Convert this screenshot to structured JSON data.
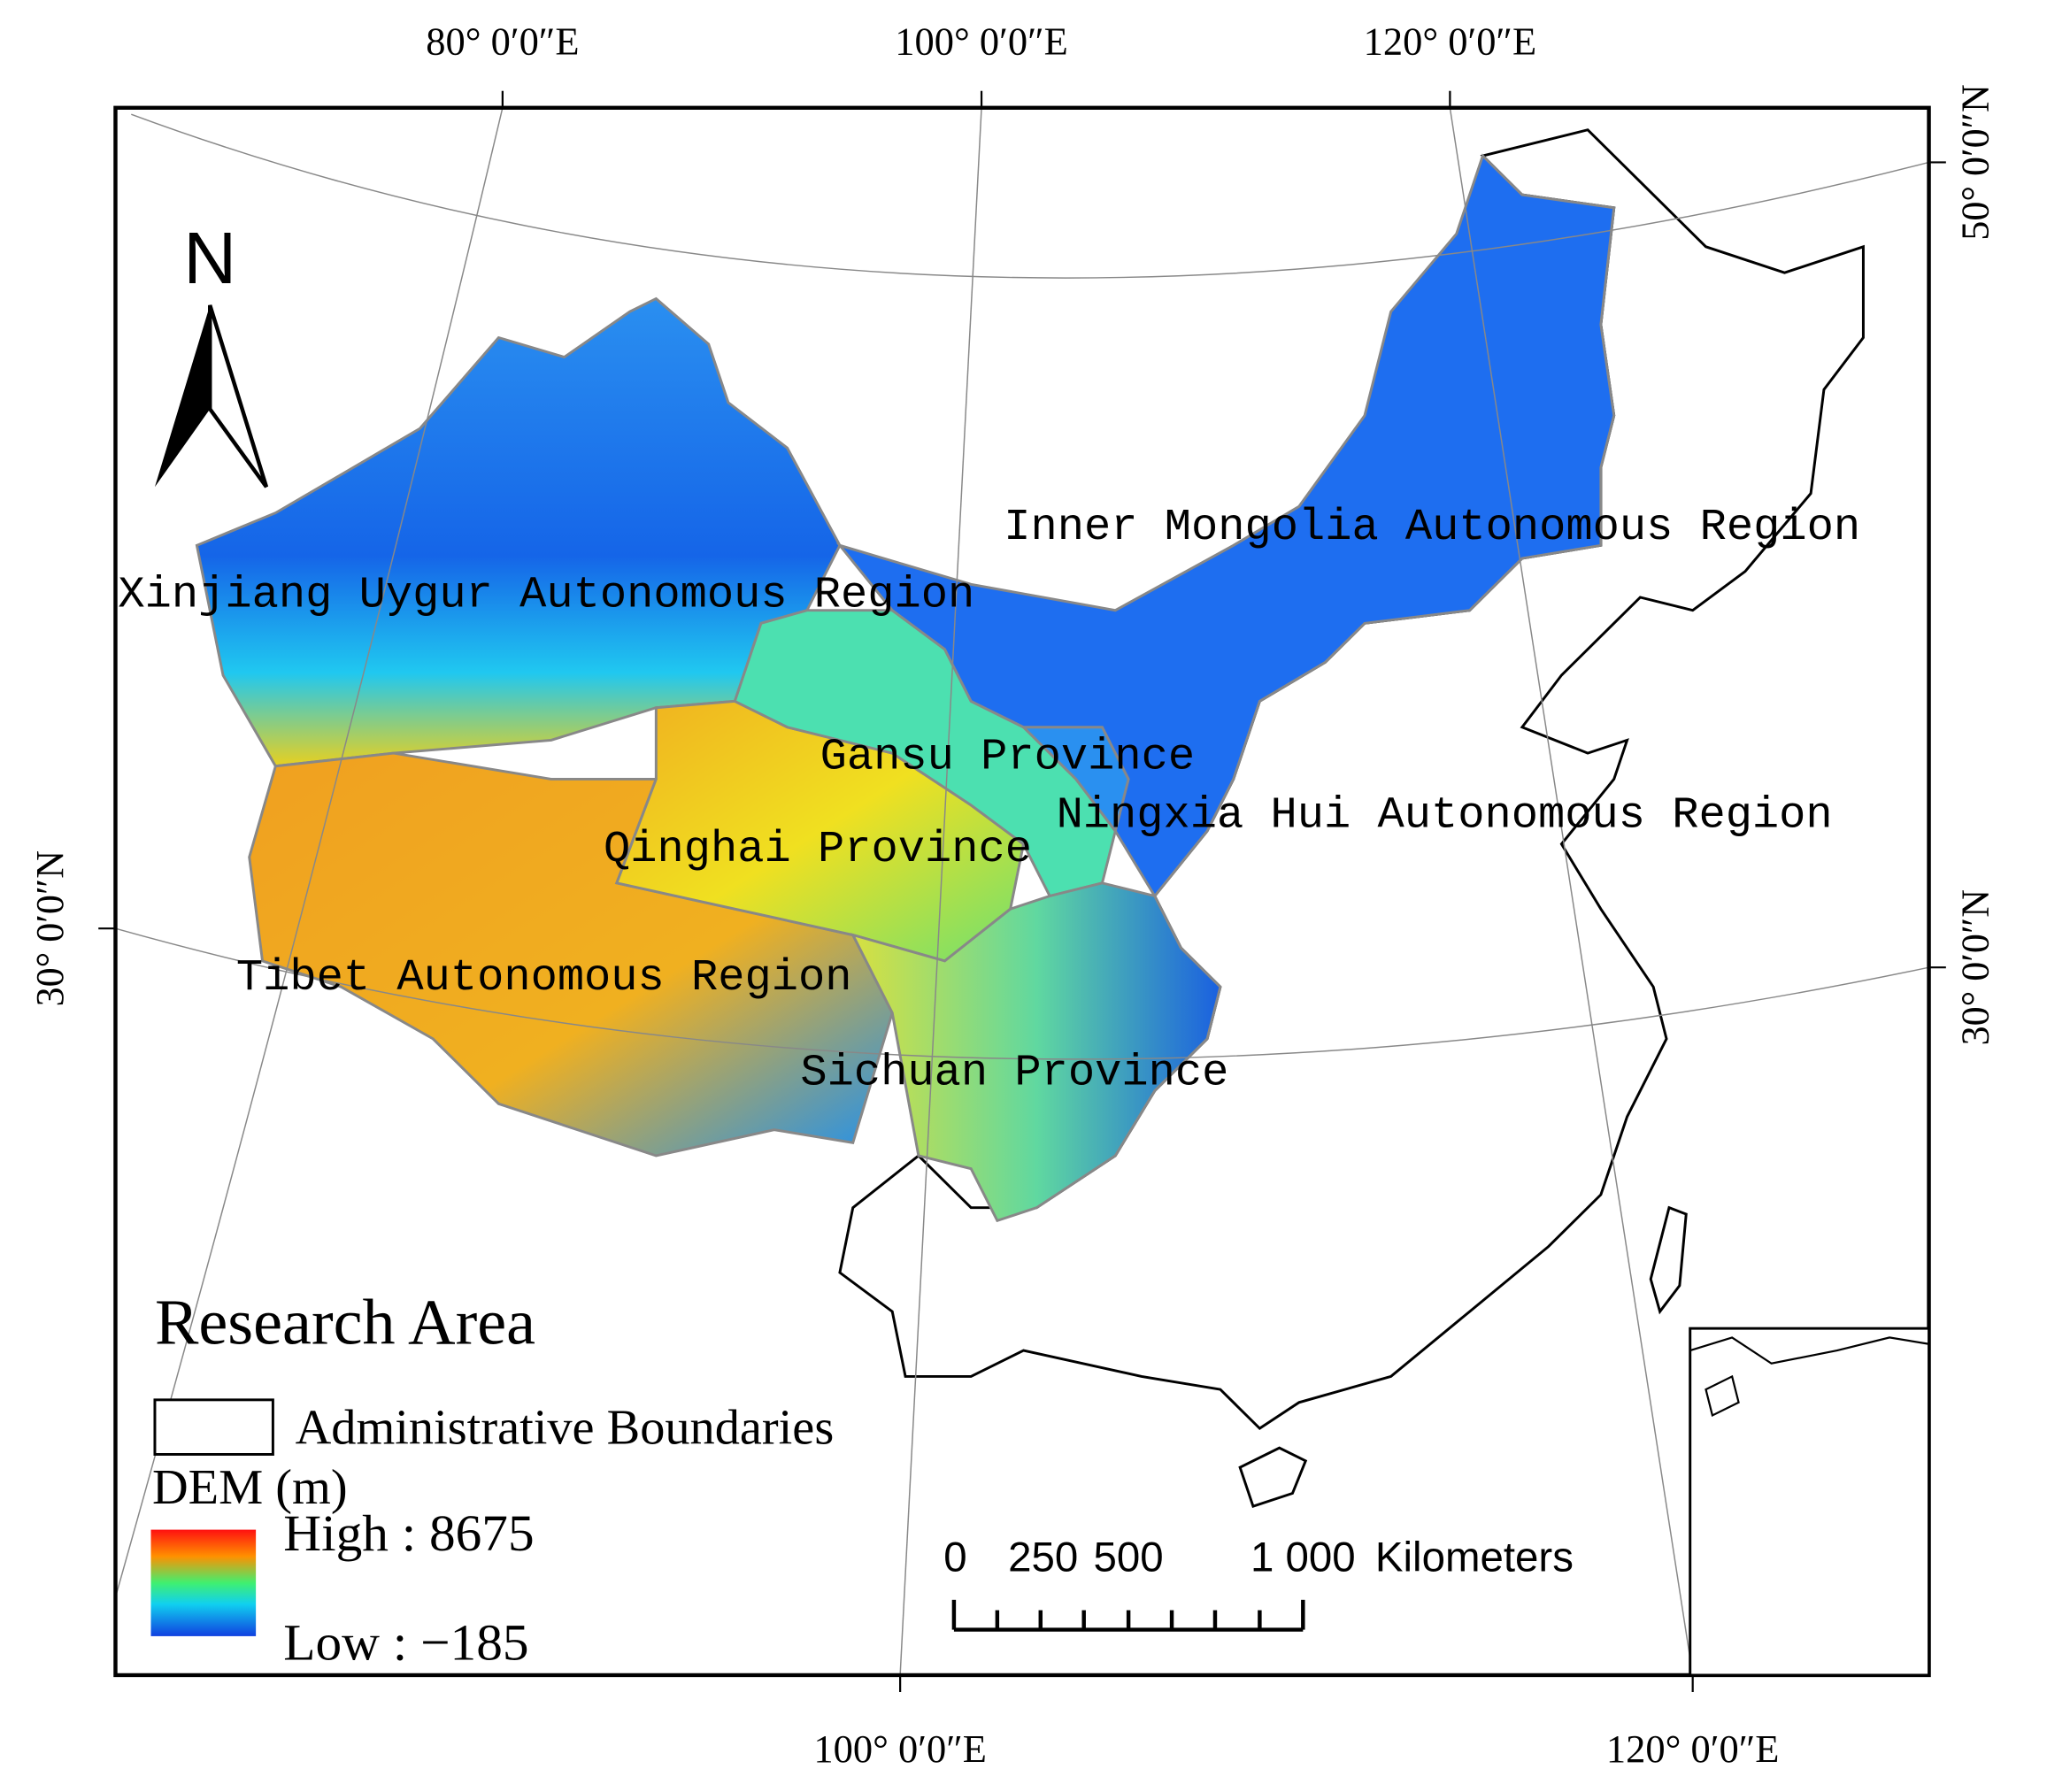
{
  "graticule": {
    "top": [
      "80° 0′0″E",
      "100° 0′0″E",
      "120° 0′0″E"
    ],
    "bottom": [
      "100° 0′0″E",
      "120° 0′0″E"
    ],
    "left": [
      "30° 0′0″N"
    ],
    "right": [
      "50° 0′0″N",
      "30° 0′0″N"
    ]
  },
  "north_arrow": "N",
  "regions": [
    "Inner Mongolia Autonomous Region",
    "Xinjiang Uygur Autonomous Region",
    "Gansu Province",
    "Ningxia Hui Autonomous Region",
    "Qinghai Province",
    "Tibet Autonomous Region",
    "Sichuan Province"
  ],
  "legend": {
    "title": "Research Area",
    "boundary": "Administrative Boundaries",
    "dem_title": "DEM (m)",
    "high": "High : 8675",
    "low": "Low : −185"
  },
  "scale_bar": {
    "ticks": [
      "0",
      "250",
      "500",
      "1 000"
    ],
    "unit": "Kilometers"
  }
}
